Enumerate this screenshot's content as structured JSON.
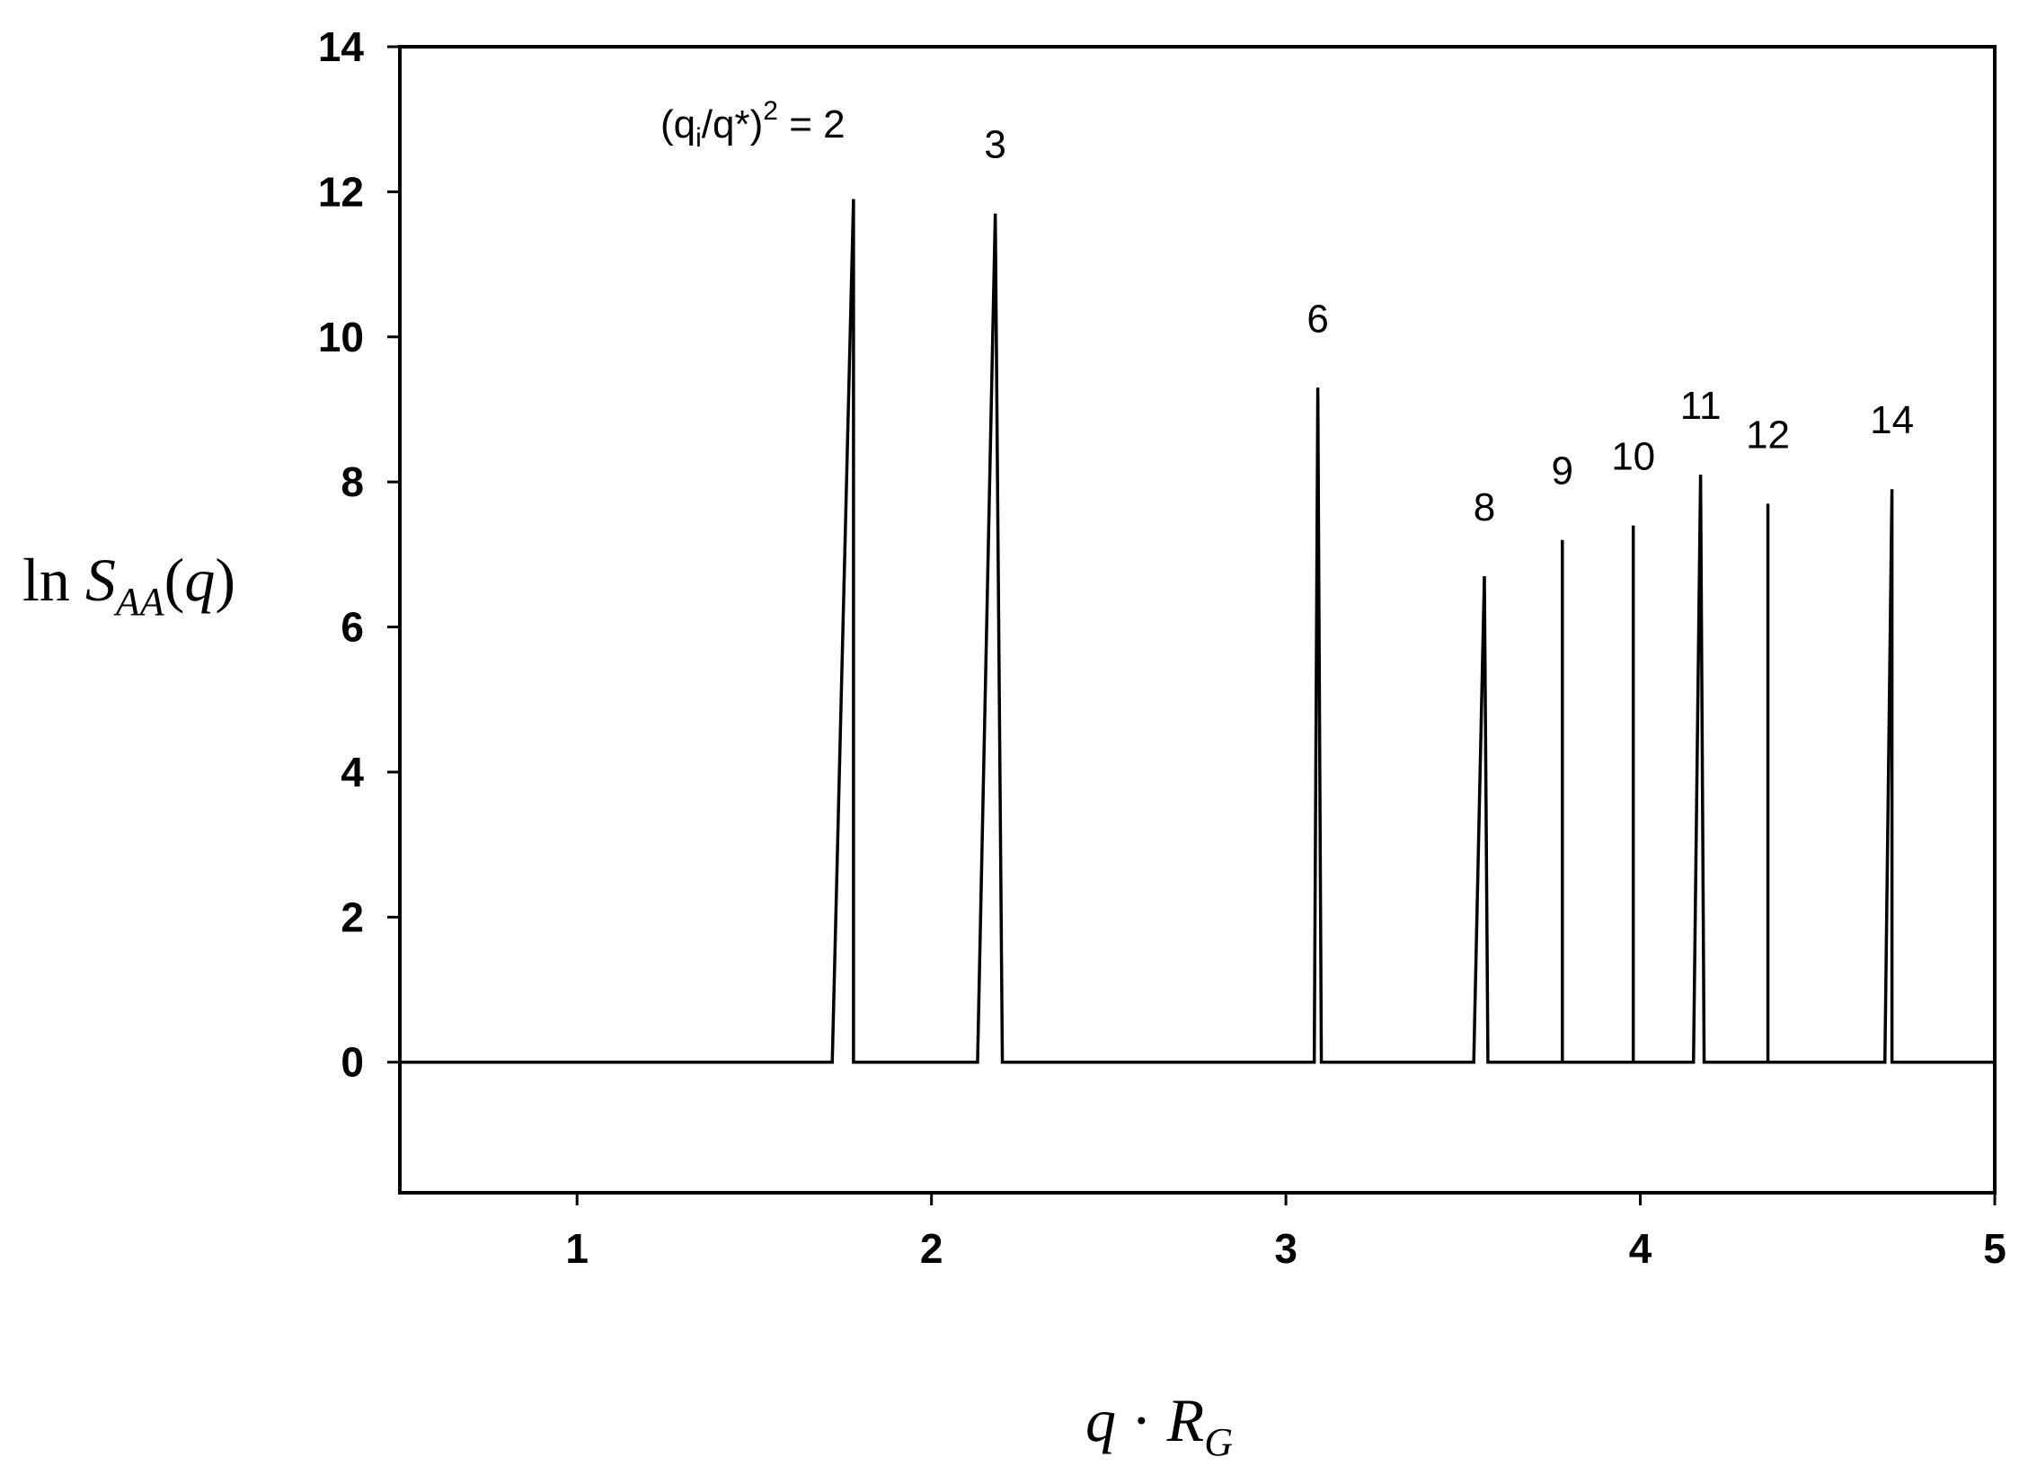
{
  "chart_data": {
    "type": "line",
    "title": "",
    "xlabel": {
      "parts": [
        "q",
        " · ",
        "R",
        "G"
      ]
    },
    "ylabel": {
      "parts": [
        "ln ",
        "S",
        "AA",
        "(",
        "q",
        ")"
      ]
    },
    "xlim": [
      0.5,
      5.0
    ],
    "ylim": [
      -1.8,
      14
    ],
    "x_ticks": [
      1,
      2,
      3,
      4,
      5
    ],
    "x_tick_labels": [
      "1",
      "2",
      "3",
      "4",
      "5"
    ],
    "y_ticks": [
      0,
      2,
      4,
      6,
      8,
      10,
      12,
      14
    ],
    "y_tick_labels": [
      "0",
      "2",
      "4",
      "6",
      "8",
      "10",
      "12",
      "14"
    ],
    "grid": false,
    "baseline": 0,
    "peaks": [
      {
        "x": 1.78,
        "y": 11.9,
        "x_start": 1.72,
        "x_end": 1.78,
        "label": "2",
        "label_prefix": "(q/q*)"
      },
      {
        "x": 2.18,
        "y": 11.7,
        "x_start": 2.13,
        "x_end": 2.2,
        "label": "3"
      },
      {
        "x": 3.09,
        "y": 9.3,
        "x_start": 3.08,
        "x_end": 3.1,
        "label": "6"
      },
      {
        "x": 3.56,
        "y": 6.7,
        "x_start": 3.53,
        "x_end": 3.57,
        "label": "8"
      },
      {
        "x": 3.78,
        "y": 7.2,
        "x_start": 3.78,
        "x_end": 3.78,
        "label": "9"
      },
      {
        "x": 3.98,
        "y": 7.4,
        "x_start": 3.98,
        "x_end": 3.98,
        "label": "10"
      },
      {
        "x": 4.17,
        "y": 8.1,
        "x_start": 4.15,
        "x_end": 4.18,
        "label": "11"
      },
      {
        "x": 4.36,
        "y": 7.7,
        "x_start": 4.36,
        "x_end": 4.36,
        "label": "12"
      },
      {
        "x": 4.71,
        "y": 7.9,
        "x_start": 4.69,
        "x_end": 4.71,
        "label": "14"
      }
    ],
    "first_label_text": {
      "open": "(q",
      "sub": "i",
      "mid": "/q*)",
      "sup": "2",
      "rest": " = 2"
    }
  }
}
